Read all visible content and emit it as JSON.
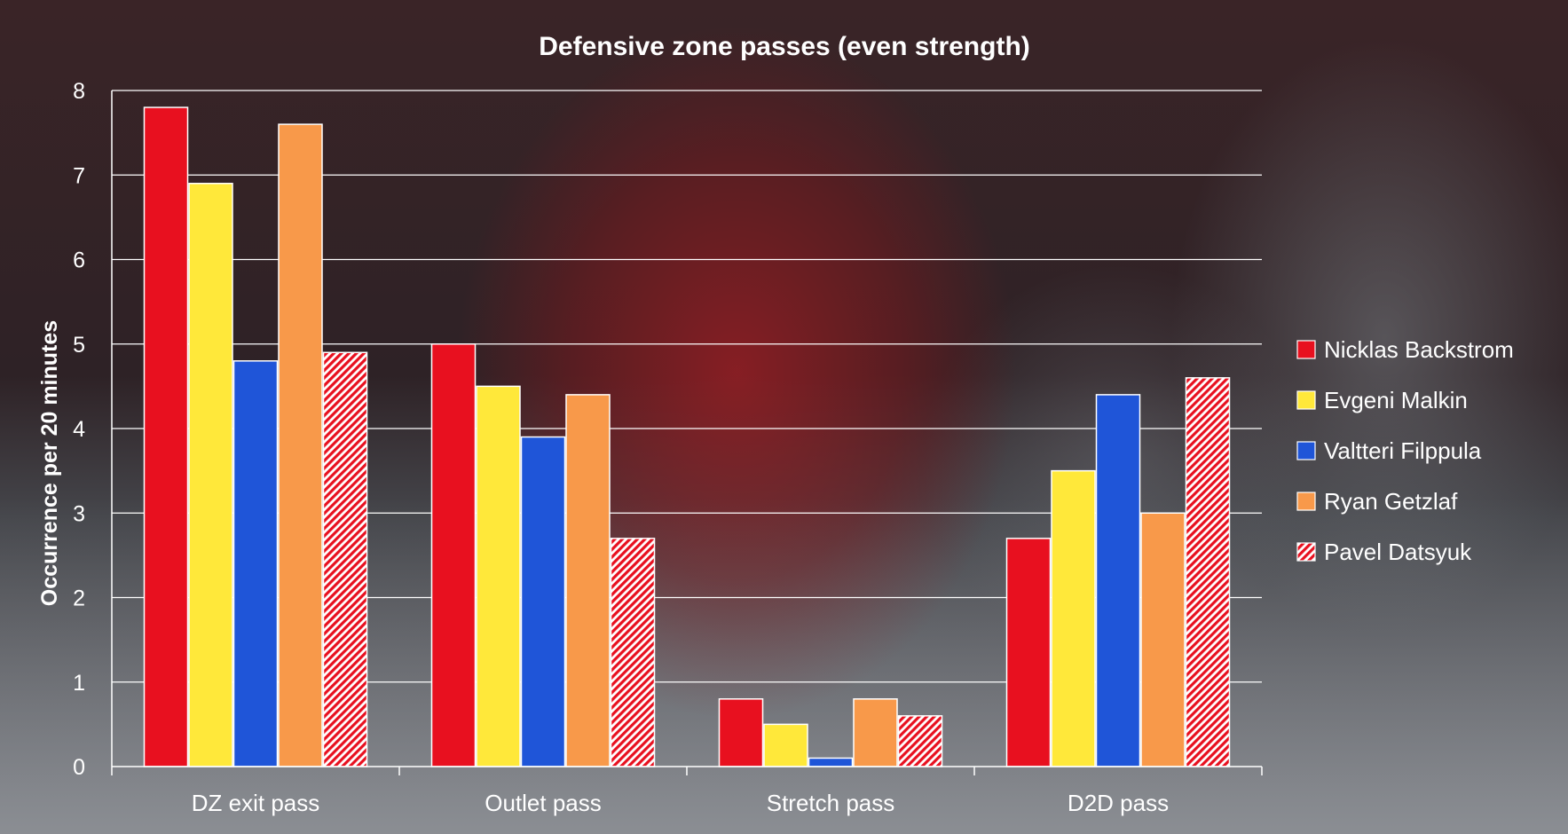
{
  "chart_data": {
    "type": "bar",
    "title": "Defensive zone passes (even strength)",
    "xlabel": "",
    "ylabel": "Occurrence per 20 minutes",
    "categories": [
      "DZ exit pass",
      "Outlet pass",
      "Stretch pass",
      "D2D pass"
    ],
    "ylim": [
      0,
      8
    ],
    "yticks": [
      "0",
      "1",
      "2",
      "3",
      "4",
      "5",
      "6",
      "7",
      "8"
    ],
    "grid": true,
    "legend_position": "right",
    "series": [
      {
        "name": "Nicklas Backstrom",
        "color": "#e8101f",
        "pattern": "solid",
        "values": [
          7.8,
          5.0,
          0.8,
          2.7
        ]
      },
      {
        "name": "Evgeni Malkin",
        "color": "#ffe83a",
        "pattern": "solid",
        "values": [
          6.9,
          4.5,
          0.5,
          3.5
        ]
      },
      {
        "name": "Valtteri Filppula",
        "color": "#1f55d8",
        "pattern": "solid",
        "values": [
          4.8,
          3.9,
          0.1,
          4.4
        ]
      },
      {
        "name": "Ryan Getzlaf",
        "color": "#f8994a",
        "pattern": "solid",
        "values": [
          7.6,
          4.4,
          0.8,
          3.0
        ]
      },
      {
        "name": "Pavel Datsyuk",
        "color": "#e8101f",
        "pattern": "hatched",
        "values": [
          4.9,
          2.7,
          0.6,
          4.6
        ]
      }
    ]
  }
}
